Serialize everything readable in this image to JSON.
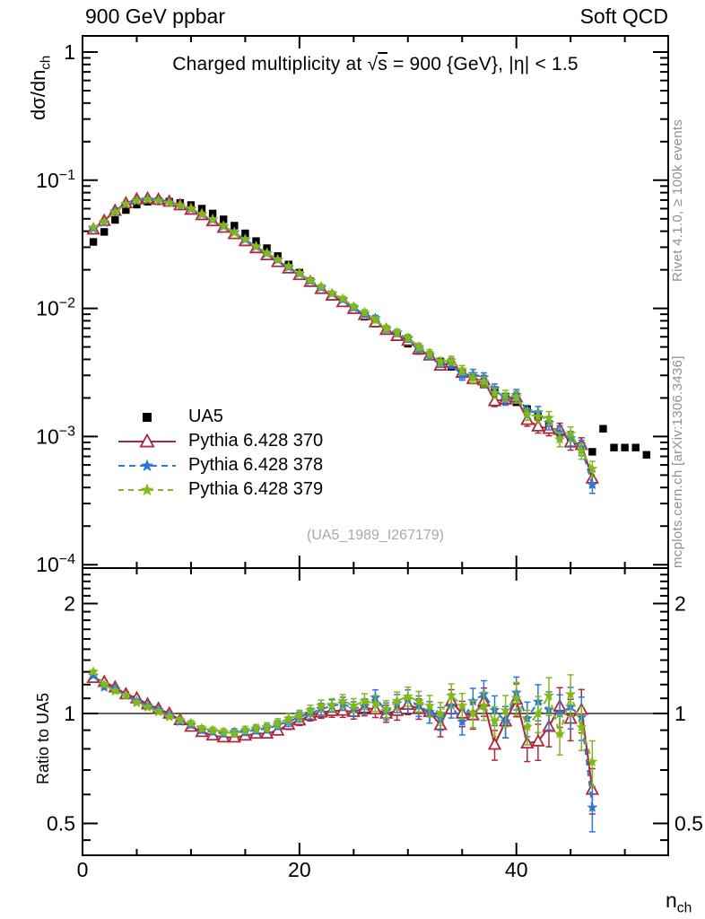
{
  "header": {
    "left": "900 GeV ppbar",
    "right": "Soft QCD"
  },
  "title": {
    "pre": "Charged multiplicity at √",
    "sqrt_arg": "s",
    "post": " = 900 {GeV}, |η| < 1.5"
  },
  "side_notes": {
    "rivet": "Rivet 4.1.0, ≥ 100k events",
    "mcplots": "mcplots.cern.ch [arXiv:1306.3436]"
  },
  "watermark": "(UA5_1989_I267179)",
  "axes": {
    "x": {
      "label_base": "n",
      "label_sub": "ch",
      "min": 0,
      "max": 54,
      "major_ticks": [
        0,
        20,
        40
      ],
      "minor_step": 5
    },
    "y_main": {
      "label_base": "dσ/dn",
      "label_sub": "ch",
      "scale": "log",
      "min": 9.3e-05,
      "max": 1.34,
      "tick_labels": [
        {
          "v": 1,
          "label": "1"
        },
        {
          "v": 0.1,
          "label": "10^−1"
        },
        {
          "v": 0.01,
          "label": "10^−2"
        },
        {
          "v": 0.001,
          "label": "10^−3"
        },
        {
          "v": 0.0001,
          "label": "10^−4"
        }
      ]
    },
    "y_ratio": {
      "label": "Ratio to UA5",
      "scale": "log",
      "min": 0.41,
      "max": 2.5,
      "tick_labels": [
        {
          "v": 2,
          "label": "2"
        },
        {
          "v": 1,
          "label": "1"
        },
        {
          "v": 0.5,
          "label": "0.5"
        }
      ],
      "minor_ticks": [
        0.45,
        0.6,
        0.7,
        0.8,
        0.9,
        1.1,
        1.2,
        1.3,
        1.4,
        1.5,
        1.6,
        1.7,
        1.8,
        1.9,
        2.1,
        2.2,
        2.3,
        2.4
      ]
    }
  },
  "chart_data": {
    "type": "line",
    "title": "Charged multiplicity at √s = 900 {GeV}, |η| < 1.5",
    "xlabel": "n_ch",
    "ylabel": "dσ/dn_ch",
    "ratio_ylabel": "Ratio to UA5",
    "yscale": "log",
    "xlim": [
      0,
      54
    ],
    "ylim_main": [
      9.3e-05,
      1.34
    ],
    "ylim_ratio": [
      0.41,
      2.5
    ],
    "x": [
      1,
      2,
      3,
      4,
      5,
      6,
      7,
      8,
      9,
      10,
      11,
      12,
      13,
      14,
      15,
      16,
      17,
      18,
      19,
      20,
      21,
      22,
      23,
      24,
      25,
      26,
      27,
      28,
      29,
      30,
      31,
      32,
      33,
      34,
      35,
      36,
      37,
      38,
      39,
      40,
      41,
      42,
      43,
      44,
      45,
      46,
      47
    ],
    "reference": {
      "name": "UA5",
      "marker": "square",
      "color": "#000000",
      "x": [
        1,
        2,
        3,
        4,
        5,
        6,
        7,
        8,
        9,
        10,
        11,
        12,
        13,
        14,
        15,
        16,
        17,
        18,
        19,
        20,
        21,
        22,
        23,
        24,
        25,
        26,
        27,
        28,
        29,
        30,
        31,
        32,
        33,
        34,
        35,
        36,
        37,
        38,
        39,
        40,
        41,
        42,
        43,
        44,
        45,
        46,
        47,
        48,
        49,
        50,
        51,
        52
      ],
      "y": [
        0.033,
        0.0395,
        0.049,
        0.0585,
        0.0645,
        0.068,
        0.0685,
        0.068,
        0.0665,
        0.064,
        0.06,
        0.055,
        0.0495,
        0.0442,
        0.0385,
        0.0335,
        0.0295,
        0.0256,
        0.022,
        0.019,
        0.0163,
        0.0141,
        0.0124,
        0.011,
        0.0098,
        0.0086,
        0.0076,
        0.0068,
        0.006,
        0.0053,
        0.00465,
        0.00425,
        0.00385,
        0.0035,
        0.00315,
        0.00285,
        0.00255,
        0.0023,
        0.00205,
        0.00185,
        0.00163,
        0.00143,
        0.00125,
        0.00108,
        0.00093,
        0.00084,
        0.00076,
        0.00115,
        0.00082,
        0.00082,
        0.00082,
        0.00072
      ]
    },
    "series": [
      {
        "name": "Pythia 6.428 370",
        "color": "#aa283c",
        "line": "solid",
        "marker": "triangle-open",
        "y": [
          0.0413,
          0.0482,
          0.0578,
          0.0661,
          0.071,
          0.0721,
          0.0706,
          0.068,
          0.0638,
          0.0589,
          0.0534,
          0.0479,
          0.0426,
          0.038,
          0.0335,
          0.0295,
          0.026,
          0.023,
          0.0205,
          0.0182,
          0.0161,
          0.0142,
          0.0126,
          0.0112,
          0.0099,
          0.0089,
          0.0078,
          0.0068,
          0.0061,
          0.0056,
          0.00479,
          0.00429,
          0.00358,
          0.00378,
          0.00315,
          0.00282,
          0.00275,
          0.00189,
          0.00195,
          0.00202,
          0.00135,
          0.0012,
          0.00115,
          0.00113,
          0.0009,
          0.00086,
          0.00047
        ]
      },
      {
        "name": "Pythia 6.428 378",
        "color": "#2d78d7",
        "line": "dashed",
        "marker": "star",
        "y": [
          0.0419,
          0.0466,
          0.0573,
          0.0655,
          0.0697,
          0.0714,
          0.0699,
          0.0673,
          0.0632,
          0.0595,
          0.054,
          0.049,
          0.0436,
          0.0393,
          0.0343,
          0.0302,
          0.0268,
          0.0238,
          0.0209,
          0.0186,
          0.0163,
          0.0145,
          0.013,
          0.0117,
          0.0101,
          0.009,
          0.0084,
          0.0069,
          0.0064,
          0.0058,
          0.00488,
          0.00429,
          0.00373,
          0.00368,
          0.00299,
          0.00308,
          0.00288,
          0.00235,
          0.00195,
          0.00211,
          0.00158,
          0.00154,
          0.00128,
          0.00108,
          0.00097,
          0.00082,
          0.00042
        ]
      },
      {
        "name": "Pythia 6.428 379",
        "color": "#82b919",
        "line": "dashed",
        "marker": "star",
        "y": [
          0.0429,
          0.0474,
          0.0564,
          0.0655,
          0.069,
          0.0707,
          0.0692,
          0.0666,
          0.0638,
          0.0602,
          0.0546,
          0.0495,
          0.0441,
          0.0389,
          0.0347,
          0.0305,
          0.0271,
          0.0241,
          0.0213,
          0.0188,
          0.0166,
          0.0148,
          0.0131,
          0.0119,
          0.0103,
          0.0093,
          0.0081,
          0.007,
          0.0065,
          0.0059,
          0.00502,
          0.00446,
          0.00385,
          0.00392,
          0.00331,
          0.00285,
          0.00268,
          0.00219,
          0.00209,
          0.00204,
          0.0015,
          0.00143,
          0.0014,
          0.00095,
          0.00105,
          0.00077,
          0.00056
        ]
      }
    ]
  }
}
